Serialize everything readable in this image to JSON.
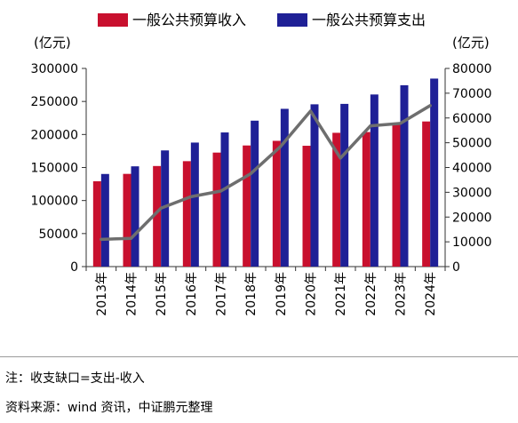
{
  "chart_data": {
    "type": "bar+line",
    "legend": {
      "placement": "top",
      "entries": [
        {
          "label": "一般公共预算收入",
          "color": "#c8102e"
        },
        {
          "label": "一般公共预算支出",
          "color": "#1f2096"
        }
      ]
    },
    "left_axis": {
      "unit_label": "(亿元)",
      "ylim": [
        0,
        300000
      ],
      "ticks": [
        "0",
        "50000",
        "100000",
        "150000",
        "200000",
        "250000",
        "300000"
      ]
    },
    "right_axis": {
      "unit_label": "(亿元)",
      "ylim": [
        0,
        80000
      ],
      "ticks": [
        "0",
        "10000",
        "20000",
        "30000",
        "40000",
        "50000",
        "60000",
        "70000",
        "80000"
      ]
    },
    "categories": [
      "2013年",
      "2014年",
      "2015年",
      "2016年",
      "2017年",
      "2018年",
      "2019年",
      "2020年",
      "2021年",
      "2022年",
      "2023年",
      "2024年"
    ],
    "series": [
      {
        "name": "一般公共预算收入",
        "axis": "left",
        "kind": "bar",
        "color": "#c8102e",
        "values": [
          129210,
          140370,
          152269,
          159605,
          172593,
          183360,
          190390,
          182914,
          202539,
          203703,
          216795,
          219702
        ]
      },
      {
        "name": "一般公共预算支出",
        "axis": "left",
        "kind": "bar",
        "color": "#1f2096",
        "values": [
          140212,
          151786,
          175878,
          187755,
          203085,
          220904,
          238858,
          245679,
          246322,
          260552,
          274574,
          284612
        ]
      },
      {
        "name": "",
        "axis": "right",
        "kind": "line",
        "color": "#6e6e6e",
        "values": [
          11000,
          11400,
          23600,
          28200,
          30500,
          37500,
          48500,
          62800,
          43800,
          56800,
          57800,
          65000
        ]
      }
    ],
    "grid": false
  },
  "notes": {
    "note1": "注：收支缺口=支出-收入",
    "note2": "资料来源：wind 资讯，中证鹏元整理"
  }
}
